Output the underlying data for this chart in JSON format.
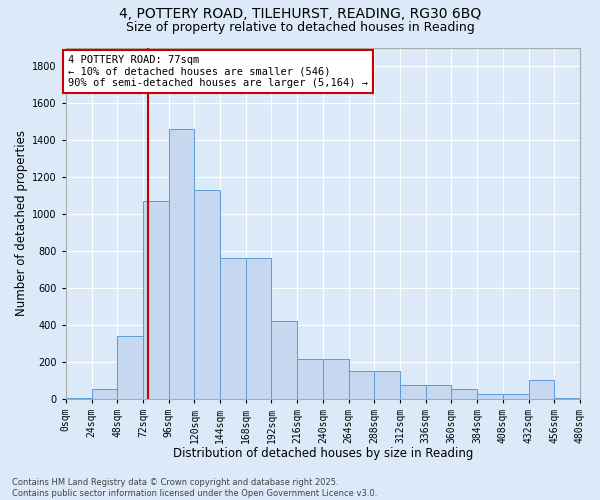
{
  "title_line1": "4, POTTERY ROAD, TILEHURST, READING, RG30 6BQ",
  "title_line2": "Size of property relative to detached houses in Reading",
  "xlabel": "Distribution of detached houses by size in Reading",
  "ylabel": "Number of detached properties",
  "bin_edges": [
    0,
    24,
    48,
    72,
    96,
    120,
    144,
    168,
    192,
    216,
    240,
    264,
    288,
    312,
    336,
    360,
    384,
    408,
    432,
    456,
    480
  ],
  "bar_heights": [
    5,
    50,
    340,
    1070,
    1460,
    1130,
    760,
    760,
    420,
    215,
    215,
    150,
    150,
    75,
    75,
    50,
    25,
    25,
    100,
    5,
    0
  ],
  "bar_color": "#c5d8f0",
  "bar_edgecolor": "#5b9bd5",
  "background_color": "#dce9f8",
  "grid_color": "#ffffff",
  "property_sqm": 77,
  "annotation_text": "4 POTTERY ROAD: 77sqm\n← 10% of detached houses are smaller (546)\n90% of semi-detached houses are larger (5,164) →",
  "annotation_box_color": "#ffffff",
  "annotation_box_edgecolor": "#cc0000",
  "vline_color": "#cc0000",
  "ylim": [
    0,
    1900
  ],
  "yticks": [
    0,
    200,
    400,
    600,
    800,
    1000,
    1200,
    1400,
    1600,
    1800
  ],
  "xtick_labels": [
    "0sqm",
    "24sqm",
    "48sqm",
    "72sqm",
    "96sqm",
    "120sqm",
    "144sqm",
    "168sqm",
    "192sqm",
    "216sqm",
    "240sqm",
    "264sqm",
    "288sqm",
    "312sqm",
    "336sqm",
    "360sqm",
    "384sqm",
    "408sqm",
    "432sqm",
    "456sqm",
    "480sqm"
  ],
  "footnote": "Contains HM Land Registry data © Crown copyright and database right 2025.\nContains public sector information licensed under the Open Government Licence v3.0.",
  "title_fontsize": 10,
  "subtitle_fontsize": 9,
  "axis_label_fontsize": 8.5,
  "tick_fontsize": 7,
  "annotation_fontsize": 7.5,
  "footnote_fontsize": 6
}
